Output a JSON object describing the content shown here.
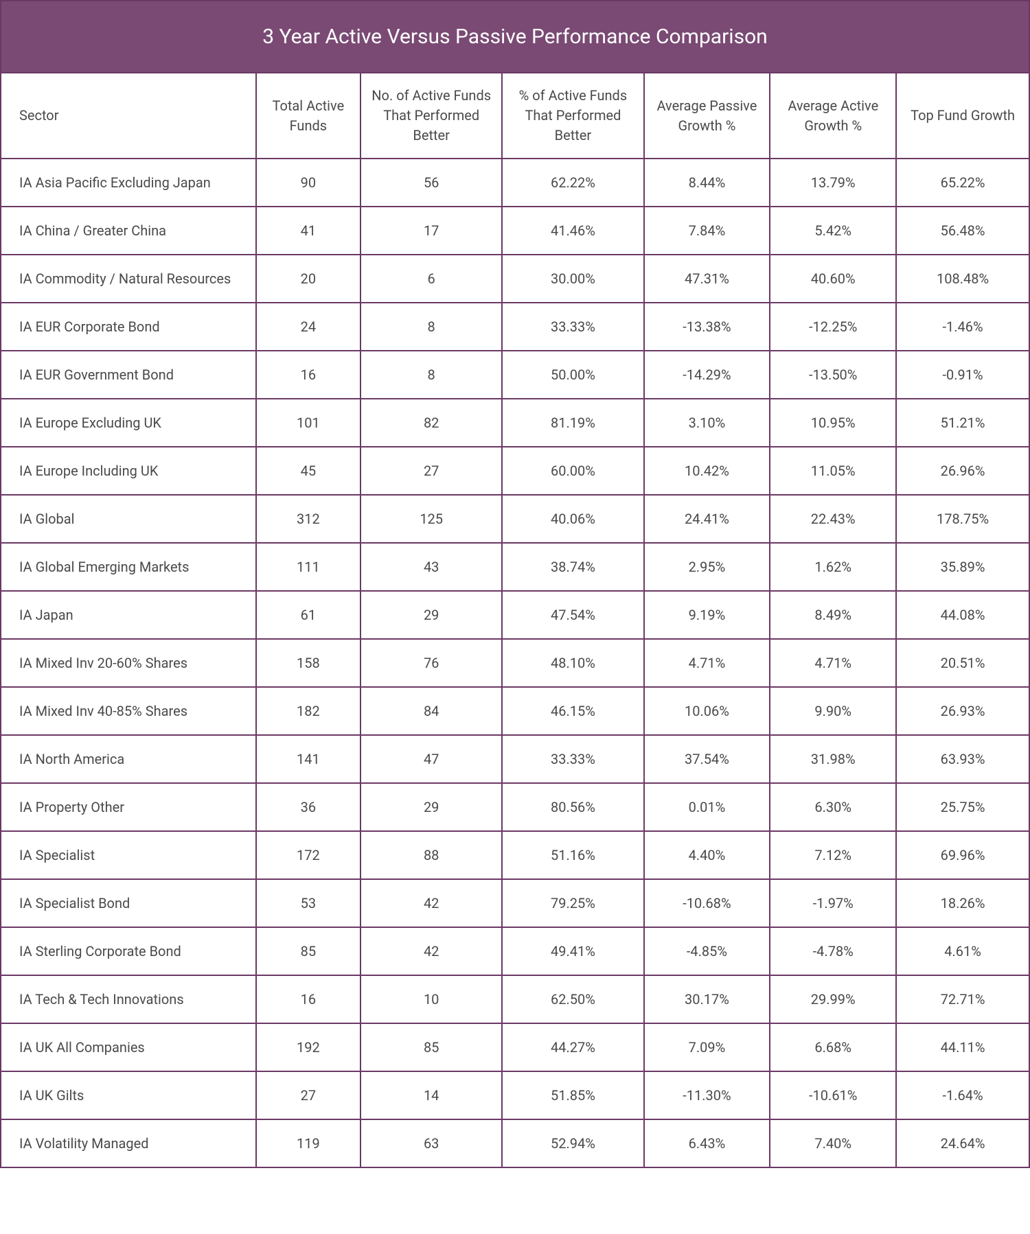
{
  "title": "3 Year Active Versus Passive Performance Comparison",
  "table": {
    "columns": [
      "Sector",
      "Total Active Funds",
      "No. of Active Funds That Performed Better",
      "% of Active Funds That Performed Better",
      "Average Passive Growth %",
      "Average Active Growth %",
      "Top Fund Growth"
    ],
    "rows": [
      [
        "IA Asia Pacific Excluding Japan",
        "90",
        "56",
        "62.22%",
        "8.44%",
        "13.79%",
        "65.22%"
      ],
      [
        "IA China / Greater China",
        "41",
        "17",
        "41.46%",
        "7.84%",
        "5.42%",
        "56.48%"
      ],
      [
        "IA Commodity / Natural Resources",
        "20",
        "6",
        "30.00%",
        "47.31%",
        "40.60%",
        "108.48%"
      ],
      [
        "IA EUR Corporate Bond",
        "24",
        "8",
        "33.33%",
        "-13.38%",
        "-12.25%",
        "-1.46%"
      ],
      [
        "IA EUR Government Bond",
        "16",
        "8",
        "50.00%",
        "-14.29%",
        "-13.50%",
        "-0.91%"
      ],
      [
        "IA Europe Excluding UK",
        "101",
        "82",
        "81.19%",
        "3.10%",
        "10.95%",
        "51.21%"
      ],
      [
        "IA Europe Including UK",
        "45",
        "27",
        "60.00%",
        "10.42%",
        "11.05%",
        "26.96%"
      ],
      [
        "IA Global",
        "312",
        "125",
        "40.06%",
        "24.41%",
        "22.43%",
        "178.75%"
      ],
      [
        "IA Global Emerging Markets",
        "111",
        "43",
        "38.74%",
        "2.95%",
        "1.62%",
        "35.89%"
      ],
      [
        "IA Japan",
        "61",
        "29",
        "47.54%",
        "9.19%",
        "8.49%",
        "44.08%"
      ],
      [
        "IA Mixed Inv 20-60% Shares",
        "158",
        "76",
        "48.10%",
        "4.71%",
        "4.71%",
        "20.51%"
      ],
      [
        "IA Mixed Inv 40-85% Shares",
        "182",
        "84",
        "46.15%",
        "10.06%",
        "9.90%",
        "26.93%"
      ],
      [
        "IA North America",
        "141",
        "47",
        "33.33%",
        "37.54%",
        "31.98%",
        "63.93%"
      ],
      [
        "IA Property Other",
        "36",
        "29",
        "80.56%",
        "0.01%",
        "6.30%",
        "25.75%"
      ],
      [
        "IA Specialist",
        "172",
        "88",
        "51.16%",
        "4.40%",
        "7.12%",
        "69.96%"
      ],
      [
        "IA Specialist Bond",
        "53",
        "42",
        "79.25%",
        "-10.68%",
        "-1.97%",
        "18.26%"
      ],
      [
        "IA Sterling Corporate Bond",
        "85",
        "42",
        "49.41%",
        "-4.85%",
        "-4.78%",
        "4.61%"
      ],
      [
        "IA Tech & Tech Innovations",
        "16",
        "10",
        "62.50%",
        "30.17%",
        "29.99%",
        "72.71%"
      ],
      [
        "IA UK All Companies",
        "192",
        "85",
        "44.27%",
        "7.09%",
        "6.68%",
        "44.11%"
      ],
      [
        "IA UK Gilts",
        "27",
        "14",
        "51.85%",
        "-11.30%",
        "-10.61%",
        "-1.64%"
      ],
      [
        "IA Volatility Managed",
        "119",
        "63",
        "52.94%",
        "6.43%",
        "7.40%",
        "24.64%"
      ]
    ],
    "border_color": "#6b3863",
    "header_bg": "#7a4a74",
    "text_color": "#4a4a4a",
    "title_font_size": 30,
    "cell_font_size": 20
  }
}
